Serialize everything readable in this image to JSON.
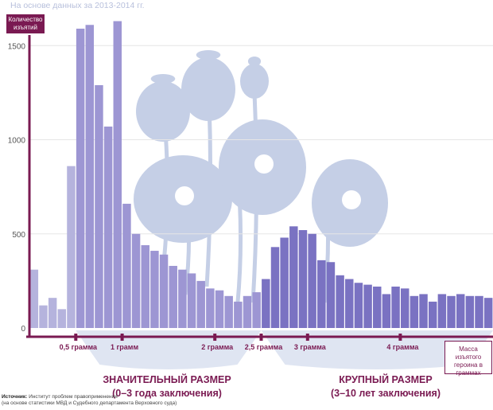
{
  "chart_data": {
    "type": "bar",
    "subtitle": "На основе данных за 2013-2014 гг.",
    "ylabel": "Количество изъятий",
    "xlabel": "Масса изъятого героина в граммах",
    "ylim": [
      0,
      1700
    ],
    "yticks": [
      0,
      500,
      1000,
      1500
    ],
    "xticks": [
      {
        "value": 0.5,
        "label": "0,5 грамма"
      },
      {
        "value": 1,
        "label": "1 грамм"
      },
      {
        "value": 2,
        "label": "2 грамма"
      },
      {
        "value": 2.5,
        "label": "2,5 грамма"
      },
      {
        "value": 3,
        "label": "3 грамма"
      },
      {
        "value": 4,
        "label": "4 грамма"
      }
    ],
    "bin_width": 0.1,
    "x": [
      0.05,
      0.15,
      0.25,
      0.35,
      0.45,
      0.55,
      0.65,
      0.75,
      0.85,
      0.95,
      1.05,
      1.15,
      1.25,
      1.35,
      1.45,
      1.55,
      1.65,
      1.75,
      1.85,
      1.95,
      2.05,
      2.15,
      2.25,
      2.35,
      2.45,
      2.55,
      2.65,
      2.75,
      2.85,
      2.95,
      3.05,
      3.15,
      3.25,
      3.35,
      3.45,
      3.55,
      3.65,
      3.75,
      3.85,
      3.95,
      4.05,
      4.15,
      4.25,
      4.35,
      4.45,
      4.55,
      4.65,
      4.75,
      4.85,
      4.95
    ],
    "values": [
      310,
      120,
      160,
      100,
      860,
      1590,
      1610,
      1290,
      1070,
      1630,
      660,
      500,
      440,
      410,
      390,
      330,
      310,
      290,
      250,
      210,
      200,
      170,
      140,
      170,
      190,
      260,
      430,
      480,
      540,
      520,
      500,
      360,
      350,
      280,
      260,
      240,
      230,
      220,
      180,
      220,
      210,
      170,
      180,
      140,
      180,
      170,
      180,
      170,
      170,
      160
    ],
    "ranges": [
      {
        "name": "significant",
        "title": "ЗНАЧИТЕЛЬНЫЙ РАЗМЕР",
        "detail": "(0–3 года заключения)",
        "from": 0.5,
        "to": 2.5
      },
      {
        "name": "large",
        "title": "КРУПНЫЙ РАЗМЕР",
        "detail": "(3–10 лет заключения)",
        "from": 2.5,
        "to": 5.0
      }
    ],
    "colors": {
      "below_significant": "#b5b3dd",
      "significant": "#9d96d3",
      "large": "#7a72c2",
      "axis": "#7a1a52",
      "grid": "#e6e6e6",
      "illustration": "#c5cfe6",
      "band": "#dfe5f2"
    }
  },
  "source": {
    "label": "Источник:",
    "text": "Институт проблем правоприменения",
    "note": "(на основе статистики МВД и Судебного департамента Верховного суда)"
  }
}
